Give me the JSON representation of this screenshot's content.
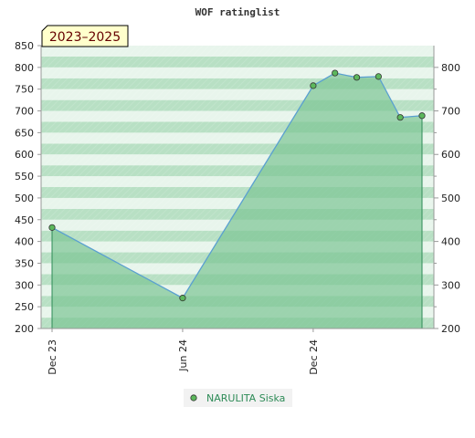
{
  "chart_data": {
    "type": "area",
    "title": "WOF ratinglist",
    "period_label": "2023–2025",
    "x_ticks": [
      "Dec 23",
      "Jun 24",
      "Dec 24"
    ],
    "ylim_left": [
      200,
      850
    ],
    "ylim_right": [
      200,
      850
    ],
    "left_ticks": [
      200,
      250,
      300,
      350,
      400,
      450,
      500,
      550,
      600,
      650,
      700,
      750,
      800,
      850
    ],
    "right_ticks": [
      200,
      300,
      400,
      500,
      600,
      700,
      800
    ],
    "series": [
      {
        "name": "NARULITA Siska",
        "points": [
          {
            "x": "2023-12",
            "y": 432
          },
          {
            "x": "2024-06",
            "y": 270
          },
          {
            "x": "2024-12",
            "y": 758
          },
          {
            "x": "2025-01",
            "y": 787
          },
          {
            "x": "2025-02",
            "y": 777
          },
          {
            "x": "2025-03",
            "y": 779
          },
          {
            "x": "2025-04",
            "y": 685
          },
          {
            "x": "2025-05",
            "y": 689
          }
        ]
      }
    ],
    "legend_position": "bottom",
    "grid": true,
    "colors": {
      "area_fill": "#7cc494",
      "line": "#5aa0d0",
      "marker": "#5cb85c",
      "band_light": "#e8f5ec",
      "band_dark": "#b8e0c4"
    }
  }
}
